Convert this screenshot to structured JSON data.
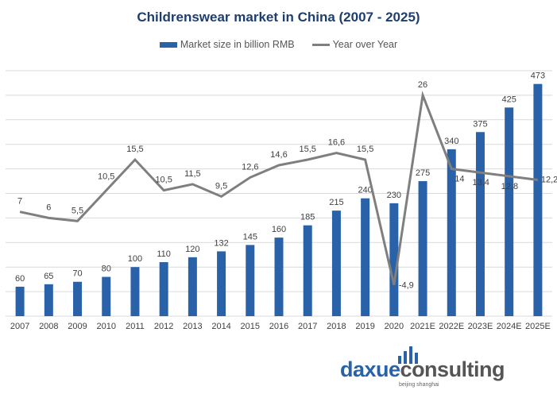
{
  "chart_data": {
    "type": "bar+line",
    "title": "Childrenswear market in China (2007 - 2025)",
    "legend_position": "top",
    "grid": true,
    "categories": [
      "2007",
      "2008",
      "2009",
      "2010",
      "2011",
      "2012",
      "2013",
      "2014",
      "2015",
      "2016",
      "2017",
      "2018",
      "2019",
      "2020",
      "2021E",
      "2022E",
      "2023E",
      "2024E",
      "2025E"
    ],
    "series": [
      {
        "name": "Market size in billion RMB",
        "type": "bar",
        "axis": "primary",
        "color": "#2962a8",
        "values": [
          60,
          65,
          70,
          80,
          100,
          110,
          120,
          132,
          145,
          160,
          185,
          215,
          240,
          230,
          275,
          340,
          375,
          425,
          473
        ],
        "labels": [
          "60",
          "65",
          "70",
          "80",
          "100",
          "110",
          "120",
          "132",
          "145",
          "160",
          "185",
          "215",
          "240",
          "230",
          "275",
          "340",
          "375",
          "425",
          "473"
        ]
      },
      {
        "name": "Year over Year",
        "type": "line",
        "axis": "secondary",
        "color": "#7f7f7f",
        "values": [
          7,
          6,
          5.5,
          10.5,
          15.5,
          10.5,
          11.5,
          9.5,
          12.6,
          14.6,
          15.5,
          16.6,
          15.5,
          -4.9,
          26,
          14,
          13.4,
          12.8,
          12.2
        ],
        "labels": [
          "7",
          "6",
          "5,5",
          "10,5",
          "15,5",
          "10,5",
          "11,5",
          "9,5",
          "12,6",
          "14,6",
          "15,5",
          "16,6",
          "15,5",
          "-4,9",
          "26",
          "14",
          "13,4",
          "12,8",
          "12,2"
        ]
      }
    ],
    "ylim": [
      0,
      500
    ],
    "y2lim": [
      -10,
      30
    ]
  },
  "logo": {
    "text_a": "daxue",
    "text_b": "consulting",
    "sub": "beijing shanghai"
  }
}
